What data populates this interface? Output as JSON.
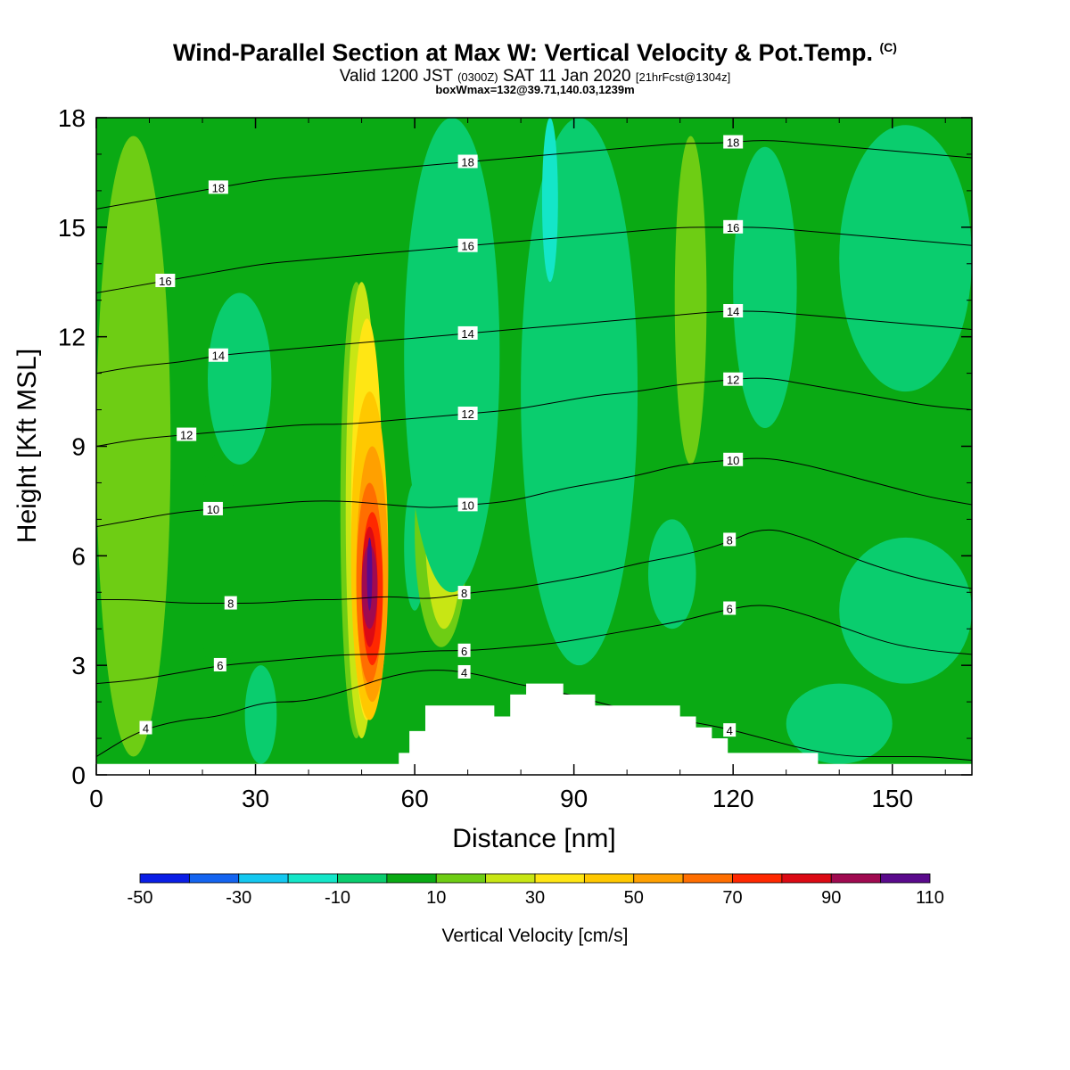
{
  "header": {
    "title": "Wind-Parallel Section at Max W: Vertical Velocity & Pot.Temp.",
    "title_mark": "(C)",
    "valid_prefix": "Valid 1200 JST",
    "valid_utc": "(0300Z)",
    "valid_date": "SAT 11 Jan 2020",
    "forecast": "[21hrFcst@1304z]",
    "boxinfo": "boxWmax=132@39.71,140.03,1239m"
  },
  "chart_data": {
    "type": "heatmap",
    "xlabel": "Distance [nm]",
    "ylabel": "Height [Kft MSL]",
    "xlim": [
      0,
      165
    ],
    "ylim": [
      0,
      18
    ],
    "xticks": [
      "0",
      "30",
      "60",
      "90",
      "120",
      "150"
    ],
    "yticks": [
      "0",
      "3",
      "6",
      "9",
      "12",
      "15",
      "18"
    ],
    "colorbar": {
      "label": "Vertical Velocity [cm/s]",
      "levels": [
        -50,
        -40,
        -30,
        -20,
        -10,
        0,
        10,
        20,
        30,
        40,
        50,
        60,
        70,
        80,
        90,
        100,
        110
      ],
      "tick_labels": [
        "-50",
        "-30",
        "-10",
        "10",
        "30",
        "50",
        "70",
        "90",
        "110"
      ],
      "colors": [
        "#0a1ee6",
        "#1464f0",
        "#14c8f0",
        "#14e6c8",
        "#0acd6e",
        "#0aaa14",
        "#6ecd14",
        "#c8e614",
        "#ffe614",
        "#ffc800",
        "#ffa000",
        "#ff6e00",
        "#ff2800",
        "#dc0a14",
        "#a00a50",
        "#5a0a8c"
      ]
    },
    "background_w": 5,
    "w_features": [
      {
        "x": [
          0,
          14
        ],
        "y": [
          0.5,
          17.5
        ],
        "w": 15
      },
      {
        "x": [
          21,
          33
        ],
        "y": [
          8.5,
          13.2
        ],
        "w": -5
      },
      {
        "x": [
          19,
          27
        ],
        "y": [
          2.6,
          8.8
        ],
        "w": 5
      },
      {
        "x": [
          46,
          52
        ],
        "y": [
          1,
          13.5
        ],
        "w": 15
      },
      {
        "x": [
          47,
          53
        ],
        "y": [
          1,
          13.5
        ],
        "w": 25
      },
      {
        "x": [
          48,
          54
        ],
        "y": [
          1.5,
          12.5
        ],
        "w": 35
      },
      {
        "x": [
          48,
          55
        ],
        "y": [
          1.5,
          10.5
        ],
        "w": 45
      },
      {
        "x": [
          49,
          55
        ],
        "y": [
          2,
          9
        ],
        "w": 55
      },
      {
        "x": [
          49,
          54
        ],
        "y": [
          2.5,
          8
        ],
        "w": 65
      },
      {
        "x": [
          50,
          54
        ],
        "y": [
          3,
          7.2
        ],
        "w": 75
      },
      {
        "x": [
          50,
          53
        ],
        "y": [
          3.5,
          6.8
        ],
        "w": 85
      },
      {
        "x": [
          50,
          53
        ],
        "y": [
          4,
          6.3
        ],
        "w": 95
      },
      {
        "x": [
          51,
          52
        ],
        "y": [
          4.5,
          6.5
        ],
        "w": 105
      },
      {
        "x": [
          58,
          62
        ],
        "y": [
          4.5,
          8
        ],
        "w": -10
      },
      {
        "x": [
          60,
          70
        ],
        "y": [
          3.5,
          9.8
        ],
        "w": 15
      },
      {
        "x": [
          62,
          69
        ],
        "y": [
          4,
          9.4
        ],
        "w": 25
      },
      {
        "x": [
          62,
          69
        ],
        "y": [
          5.5,
          9
        ],
        "w": 35
      },
      {
        "x": [
          63,
          68
        ],
        "y": [
          5.5,
          8.5
        ],
        "w": 45
      },
      {
        "x": [
          64,
          68
        ],
        "y": [
          6,
          7.6
        ],
        "w": 55
      },
      {
        "x": [
          58,
          76
        ],
        "y": [
          5,
          18
        ],
        "w": -5
      },
      {
        "x": [
          80,
          102
        ],
        "y": [
          3,
          18
        ],
        "w": -5
      },
      {
        "x": [
          84,
          87
        ],
        "y": [
          13.5,
          18
        ],
        "w": -15
      },
      {
        "x": [
          104,
          113
        ],
        "y": [
          4,
          7
        ],
        "w": -10
      },
      {
        "x": [
          109,
          115
        ],
        "y": [
          8.5,
          17.5
        ],
        "w": 15
      },
      {
        "x": [
          120,
          132
        ],
        "y": [
          9.5,
          17.2
        ],
        "w": -5
      },
      {
        "x": [
          140,
          165
        ],
        "y": [
          10.5,
          17.8
        ],
        "w": -5
      },
      {
        "x": [
          140,
          165
        ],
        "y": [
          2.5,
          6.5
        ],
        "w": -5
      },
      {
        "x": [
          130,
          150
        ],
        "y": [
          0.3,
          2.5
        ],
        "w": -5
      },
      {
        "x": [
          28,
          34
        ],
        "y": [
          0.3,
          3
        ],
        "w": -5
      }
    ],
    "theta_contours": [
      {
        "label": "4",
        "y": [
          0.5,
          1.2,
          1.5,
          1.6,
          2.0,
          2.0,
          2.3,
          2.7,
          2.9,
          2.8,
          2.5,
          2.3,
          2.0,
          1.7,
          1.5,
          1.3,
          1.0,
          0.7,
          0.5,
          0.5,
          0.5,
          0.4
        ]
      },
      {
        "label": "6",
        "y": [
          2.5,
          2.6,
          2.8,
          3.0,
          3.1,
          3.2,
          3.3,
          3.3,
          3.4,
          3.4,
          3.5,
          3.6,
          3.8,
          4.0,
          4.2,
          4.5,
          4.7,
          4.4,
          4.0,
          3.6,
          3.4,
          3.3
        ]
      },
      {
        "label": "8",
        "y": [
          4.8,
          4.8,
          4.7,
          4.7,
          4.7,
          4.8,
          4.8,
          4.9,
          4.8,
          5.0,
          5.1,
          5.3,
          5.5,
          5.8,
          6.0,
          6.3,
          6.8,
          6.5,
          6.0,
          5.6,
          5.3,
          5.1
        ]
      },
      {
        "label": "10",
        "y": [
          6.8,
          7.0,
          7.2,
          7.3,
          7.4,
          7.5,
          7.5,
          7.4,
          7.3,
          7.4,
          7.5,
          7.8,
          8.0,
          8.2,
          8.5,
          8.6,
          8.7,
          8.5,
          8.2,
          7.9,
          7.6,
          7.4
        ]
      },
      {
        "label": "12",
        "y": [
          9.0,
          9.2,
          9.3,
          9.4,
          9.5,
          9.6,
          9.6,
          9.7,
          9.8,
          9.9,
          10.0,
          10.2,
          10.4,
          10.5,
          10.7,
          10.8,
          10.9,
          10.7,
          10.5,
          10.3,
          10.1,
          10.0
        ]
      },
      {
        "label": "14",
        "y": [
          11.0,
          11.2,
          11.3,
          11.5,
          11.6,
          11.7,
          11.8,
          11.9,
          12.0,
          12.1,
          12.2,
          12.3,
          12.4,
          12.5,
          12.6,
          12.7,
          12.7,
          12.6,
          12.5,
          12.4,
          12.3,
          12.2
        ]
      },
      {
        "label": "16",
        "y": [
          13.2,
          13.4,
          13.6,
          13.8,
          14.0,
          14.1,
          14.2,
          14.3,
          14.4,
          14.5,
          14.6,
          14.7,
          14.8,
          14.9,
          15.0,
          15.0,
          15.0,
          14.9,
          14.8,
          14.7,
          14.6,
          14.5
        ]
      },
      {
        "label": "18",
        "y": [
          15.5,
          15.7,
          15.9,
          16.1,
          16.3,
          16.4,
          16.5,
          16.6,
          16.7,
          16.8,
          16.9,
          17.0,
          17.1,
          17.2,
          17.3,
          17.3,
          17.4,
          17.3,
          17.2,
          17.1,
          17.0,
          16.9
        ]
      }
    ],
    "terrain": [
      [
        0,
        0.3
      ],
      [
        57,
        0.3
      ],
      [
        57,
        0.6
      ],
      [
        59,
        0.6
      ],
      [
        59,
        1.2
      ],
      [
        62,
        1.2
      ],
      [
        62,
        1.9
      ],
      [
        75,
        1.9
      ],
      [
        75,
        1.6
      ],
      [
        78,
        1.6
      ],
      [
        78,
        2.2
      ],
      [
        81,
        2.2
      ],
      [
        81,
        2.5
      ],
      [
        88,
        2.5
      ],
      [
        88,
        2.2
      ],
      [
        94,
        2.2
      ],
      [
        94,
        1.9
      ],
      [
        110,
        1.9
      ],
      [
        110,
        1.6
      ],
      [
        113,
        1.6
      ],
      [
        113,
        1.3
      ],
      [
        116,
        1.3
      ],
      [
        116,
        1.0
      ],
      [
        119,
        1.0
      ],
      [
        119,
        0.6
      ],
      [
        136,
        0.6
      ],
      [
        136,
        0.3
      ],
      [
        165,
        0.3
      ],
      [
        165,
        0
      ],
      [
        0,
        0
      ]
    ]
  }
}
